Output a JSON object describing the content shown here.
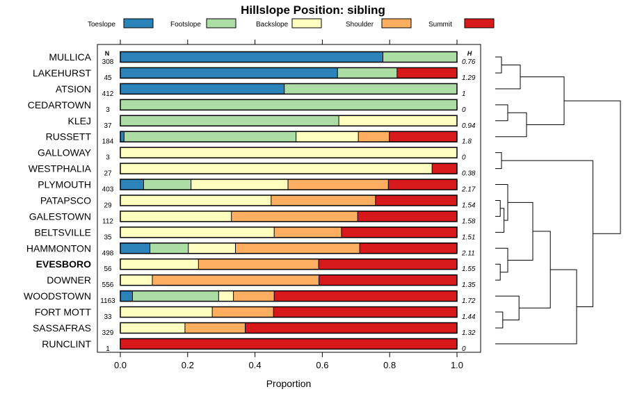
{
  "chart_data": {
    "type": "bar",
    "orientation": "horizontal",
    "stacked": true,
    "title": "Hillslope Position: sibling",
    "xlabel": "Proportion",
    "ylabel": "",
    "xlim": [
      0,
      1
    ],
    "x_ticks": [
      "0.0",
      "0.2",
      "0.4",
      "0.6",
      "0.8",
      "1.0"
    ],
    "n_header": "N",
    "h_header": "H",
    "emphasized": "EVESBORO",
    "legend_position": "top",
    "legend": [
      {
        "name": "Toeslope",
        "color": "#2b83ba"
      },
      {
        "name": "Footslope",
        "color": "#abdda4"
      },
      {
        "name": "Backslope",
        "color": "#ffffbf"
      },
      {
        "name": "Shoulder",
        "color": "#fdae61"
      },
      {
        "name": "Summit",
        "color": "#d7191c"
      }
    ],
    "rows": [
      {
        "name": "MULLICA",
        "n": "308",
        "h": "0.76",
        "values": [
          0.78,
          0.22,
          0,
          0,
          0
        ]
      },
      {
        "name": "LAKEHURST",
        "n": "45",
        "h": "1.29",
        "values": [
          0.645,
          0.177,
          0,
          0,
          0.178
        ]
      },
      {
        "name": "ATSION",
        "n": "412",
        "h": "1",
        "values": [
          0.487,
          0.513,
          0,
          0,
          0
        ]
      },
      {
        "name": "CEDARTOWN",
        "n": "3",
        "h": "0",
        "values": [
          0,
          1.0,
          0,
          0,
          0
        ]
      },
      {
        "name": "KLEJ",
        "n": "37",
        "h": "0.94",
        "values": [
          0,
          0.649,
          0.351,
          0,
          0
        ]
      },
      {
        "name": "RUSSETT",
        "n": "184",
        "h": "1.8",
        "values": [
          0.011,
          0.511,
          0.185,
          0.092,
          0.201
        ]
      },
      {
        "name": "GALLOWAY",
        "n": "3",
        "h": "0",
        "values": [
          0,
          0,
          1.0,
          0,
          0
        ]
      },
      {
        "name": "WESTPHALIA",
        "n": "27",
        "h": "0.38",
        "values": [
          0,
          0,
          0.926,
          0,
          0.074
        ]
      },
      {
        "name": "PLYMOUTH",
        "n": "403",
        "h": "2.17",
        "values": [
          0.069,
          0.141,
          0.288,
          0.298,
          0.204
        ]
      },
      {
        "name": "PATAPSCO",
        "n": "29",
        "h": "1.54",
        "values": [
          0,
          0,
          0.448,
          0.31,
          0.242
        ]
      },
      {
        "name": "GALESTOWN",
        "n": "112",
        "h": "1.58",
        "values": [
          0,
          0,
          0.33,
          0.375,
          0.295
        ]
      },
      {
        "name": "BELTSVILLE",
        "n": "35",
        "h": "1.51",
        "values": [
          0,
          0,
          0.457,
          0.2,
          0.343
        ]
      },
      {
        "name": "HAMMONTON",
        "n": "498",
        "h": "2.11",
        "values": [
          0.088,
          0.114,
          0.14,
          0.369,
          0.289
        ]
      },
      {
        "name": "EVESBORO",
        "n": "56",
        "h": "1.55",
        "values": [
          0,
          0,
          0.232,
          0.357,
          0.411
        ]
      },
      {
        "name": "DOWNER",
        "n": "556",
        "h": "1.35",
        "values": [
          0,
          0,
          0.095,
          0.495,
          0.41
        ]
      },
      {
        "name": "WOODSTOWN",
        "n": "1163",
        "h": "1.72",
        "values": [
          0.036,
          0.256,
          0.044,
          0.121,
          0.543
        ]
      },
      {
        "name": "FORT MOTT",
        "n": "33",
        "h": "1.44",
        "values": [
          0,
          0,
          0.273,
          0.182,
          0.545
        ]
      },
      {
        "name": "SASSAFRAS",
        "n": "329",
        "h": "1.32",
        "values": [
          0,
          0,
          0.192,
          0.179,
          0.629
        ]
      },
      {
        "name": "RUNCLINT",
        "n": "1",
        "h": "0",
        "values": [
          0,
          0,
          0,
          0,
          1.0
        ]
      }
    ],
    "dendrogram": {
      "description": "hierarchical clustering of the series (leaf index = row index, top to bottom)",
      "merges": [
        {
          "children": [
            0,
            1
          ],
          "height": 0.05
        },
        {
          "children": [
            3,
            4
          ],
          "height": 0.1
        },
        {
          "children": [
            "m0",
            2
          ],
          "height": 0.2
        },
        {
          "children": [
            "m1",
            5
          ],
          "height": 0.25
        },
        {
          "children": [
            "m2",
            "m3"
          ],
          "height": 0.55
        },
        {
          "children": [
            6,
            7
          ],
          "height": 0.05
        },
        {
          "children": [
            9,
            10
          ],
          "height": 0.04
        },
        {
          "children": [
            "m6",
            11
          ],
          "height": 0.07
        },
        {
          "children": [
            8,
            "m7"
          ],
          "height": 0.1
        },
        {
          "children": [
            13,
            14
          ],
          "height": 0.04
        },
        {
          "children": [
            12,
            "m9"
          ],
          "height": 0.1
        },
        {
          "children": [
            "m8",
            "m10"
          ],
          "height": 0.3
        },
        {
          "children": [
            16,
            17
          ],
          "height": 0.06
        },
        {
          "children": [
            15,
            "m12"
          ],
          "height": 0.19
        },
        {
          "children": [
            "m11",
            "m13"
          ],
          "height": 0.44
        },
        {
          "children": [
            "m14",
            18
          ],
          "height": 0.65
        },
        {
          "children": [
            "m5",
            "m15"
          ],
          "height": 0.78
        },
        {
          "children": [
            "m4",
            "m16"
          ],
          "height": 1.0
        }
      ]
    }
  }
}
